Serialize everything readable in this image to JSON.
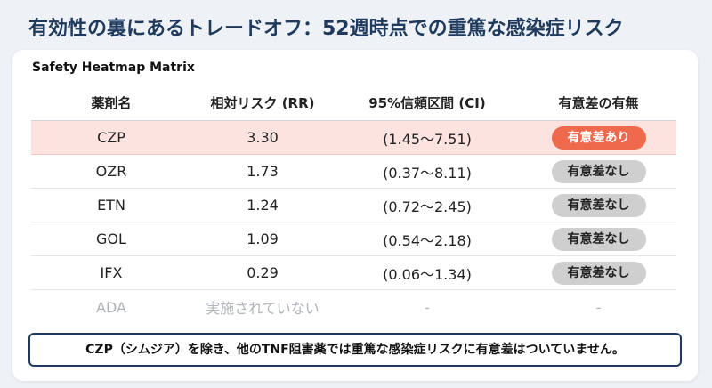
{
  "title": "有効性の裏にあるトレードオフ：52週時点での重篤な感染症リスク",
  "card": {
    "subtitle": "Safety Heatmap Matrix"
  },
  "table": {
    "headers": [
      "薬剤名",
      "相対リスク (RR)",
      "95%信頼区間 (CI)",
      "有意差の有無"
    ],
    "rows": [
      {
        "drug": "CZP",
        "rr": "3.30",
        "ci": "(1.45〜7.51)",
        "sig": "有意差あり"
      },
      {
        "drug": "OZR",
        "rr": "1.73",
        "ci": "(0.37〜8.11)",
        "sig": "有意差なし"
      },
      {
        "drug": "ETN",
        "rr": "1.24",
        "ci": "(0.72〜2.45)",
        "sig": "有意差なし"
      },
      {
        "drug": "GOL",
        "rr": "1.09",
        "ci": "(0.54〜2.18)",
        "sig": "有意差なし"
      },
      {
        "drug": "IFX",
        "rr": "0.29",
        "ci": "(0.06〜1.34)",
        "sig": "有意差なし"
      },
      {
        "drug": "ADA",
        "rr": "実施されていない",
        "ci": "-",
        "sig": "-"
      }
    ]
  },
  "note": "CZP（シムジア）を除き、他のTNF阻害薬では重篤な感染症リスクに有意差はついていません。",
  "colors": {
    "title": "#1f3a5c",
    "highlight_row": "#fde3df",
    "significant_badge": "#ef6a4d",
    "nonsignificant_badge": "#cfcfcf"
  }
}
